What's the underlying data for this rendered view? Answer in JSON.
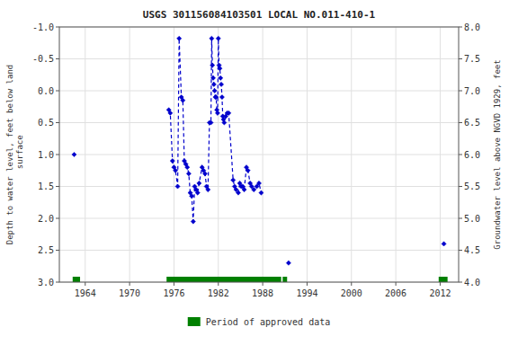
{
  "chart_data": {
    "type": "line",
    "title": "USGS 301156084103501 LOCAL NO.011-410-1",
    "ylabel": "Depth to water level, feet below land\n surface",
    "y2label": "Groundwater level above NGVD 1929, feet",
    "xlim": [
      1960.5,
      2014.5
    ],
    "xticks": [
      1964,
      1970,
      1976,
      1982,
      1988,
      1994,
      2000,
      2006,
      2012
    ],
    "ylim": [
      3.0,
      -1.0
    ],
    "yticks": [
      {
        "value": -1.0,
        "label": "-1.0"
      },
      -0.5,
      {
        "value": 0.0,
        "label": "0.0"
      },
      0.5,
      {
        "value": 1.0,
        "label": "1.0"
      },
      1.5,
      {
        "value": 2.0,
        "label": "2.0"
      },
      2.5,
      {
        "value": 3.0,
        "label": "3.0"
      }
    ],
    "y2lim": [
      4.0,
      8.0
    ],
    "y2ticks": [
      {
        "value": 4.0,
        "label": "4.0"
      },
      4.5,
      {
        "value": 5.0,
        "label": "5.0"
      },
      5.5,
      {
        "value": 6.0,
        "label": "6.0"
      },
      6.5,
      {
        "value": 7.0,
        "label": "7.0"
      },
      7.5,
      {
        "value": 8.0,
        "label": "8.0"
      }
    ],
    "grid": true,
    "legend": "bottom",
    "x": [
      1962.5,
      null,
      1975.3,
      1975.5,
      1975.8,
      1976.0,
      1976.2,
      1976.5,
      1976.7,
      1977.0,
      1977.2,
      1977.4,
      1977.6,
      1977.8,
      1978.0,
      1978.2,
      1978.4,
      1978.6,
      1978.8,
      1979.0,
      1979.2,
      1979.4,
      1979.8,
      1980.0,
      1980.2,
      1980.4,
      1980.6,
      1980.8,
      1981.0,
      1981.1,
      1981.2,
      1981.3,
      1981.4,
      1981.5,
      1981.6,
      1981.7,
      1981.8,
      1981.9,
      1982.0,
      1982.1,
      1982.2,
      1982.3,
      1982.4,
      1982.5,
      1982.6,
      1982.7,
      1982.8,
      1983.0,
      1983.2,
      1983.4,
      1984.0,
      1984.2,
      1984.4,
      1984.7,
      1984.9,
      1985.1,
      1985.3,
      1985.5,
      1985.8,
      1986.0,
      1986.3,
      1986.5,
      1986.8,
      1987.2,
      1987.5,
      1987.8,
      null,
      1991.5,
      null,
      2012.5
    ],
    "series": [
      {
        "color": "#0000CC",
        "marker": "diamond",
        "line_style": "dashed",
        "values": [
          1.0,
          null,
          0.3,
          0.35,
          1.1,
          1.2,
          1.25,
          1.5,
          -0.82,
          0.1,
          0.15,
          1.1,
          1.15,
          1.2,
          1.3,
          1.6,
          1.65,
          2.05,
          1.5,
          1.55,
          1.6,
          1.45,
          1.2,
          1.25,
          1.3,
          1.5,
          1.55,
          0.5,
          0.5,
          -0.82,
          -0.4,
          -0.2,
          -0.1,
          0.0,
          0.1,
          0.1,
          0.3,
          0.35,
          -0.82,
          -0.4,
          -0.35,
          -0.2,
          -0.1,
          0.1,
          0.4,
          0.45,
          0.5,
          0.4,
          0.35,
          0.35,
          1.4,
          1.5,
          1.55,
          1.6,
          1.45,
          1.5,
          1.5,
          1.55,
          1.2,
          1.25,
          1.45,
          1.5,
          1.55,
          1.5,
          1.45,
          1.6,
          null,
          2.7,
          null,
          2.4
        ]
      }
    ],
    "periods": {
      "name": "Period of approved data",
      "color": "#008000",
      "ranges": [
        [
          1962.3,
          1963.3
        ],
        [
          1975.0,
          1990.5
        ],
        [
          1990.7,
          1991.3
        ],
        [
          2011.8,
          2013.0
        ]
      ]
    }
  }
}
